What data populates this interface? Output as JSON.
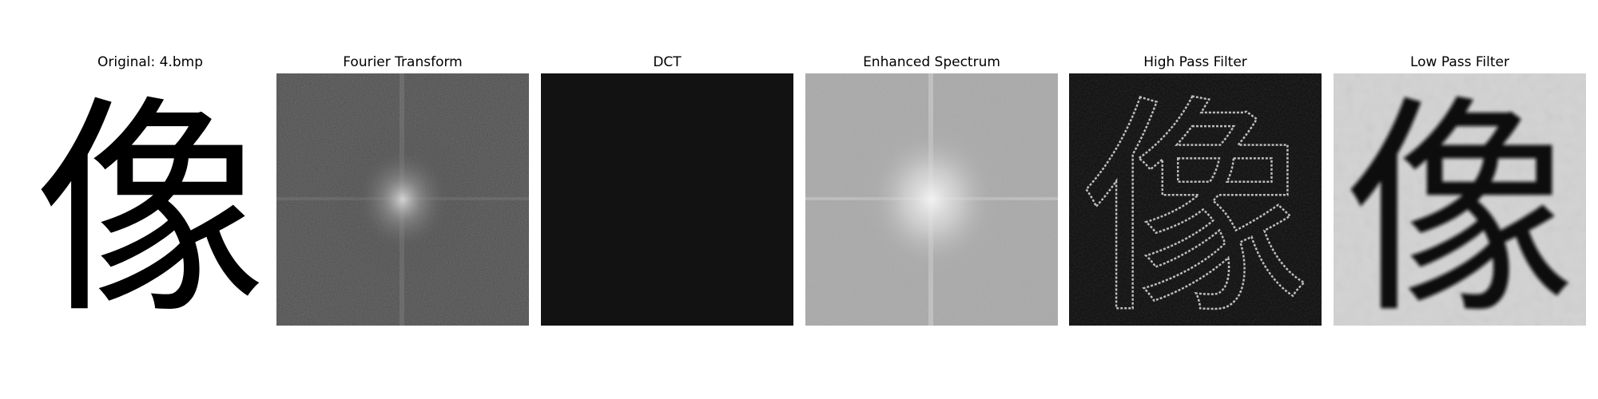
{
  "panels": [
    {
      "id": "original",
      "title": "Original: 4.bmp",
      "glyph": "像"
    },
    {
      "id": "fourier",
      "title": "Fourier Transform"
    },
    {
      "id": "dct",
      "title": "DCT"
    },
    {
      "id": "enhanced",
      "title": "Enhanced Spectrum"
    },
    {
      "id": "highpass",
      "title": "High Pass Filter",
      "glyph": "像"
    },
    {
      "id": "lowpass",
      "title": "Low Pass Filter",
      "glyph": "像"
    }
  ],
  "colors": {
    "background": "#ffffff",
    "dct_fill": "#121212",
    "fourier_base": "#4a4a4a",
    "enhanced_base": "#a8a8a8",
    "highpass_base": "#0a0a0a",
    "lowpass_base": "#d2d2d2"
  }
}
